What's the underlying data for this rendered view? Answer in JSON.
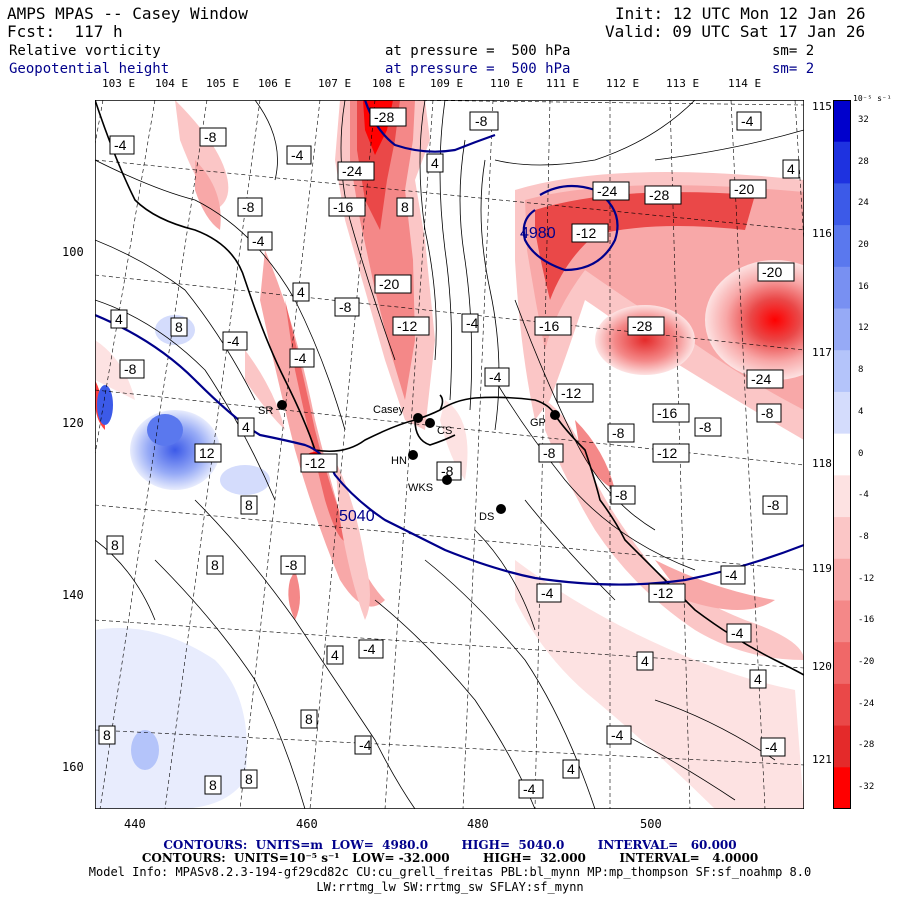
{
  "header": {
    "title": "AMPS MPAS -- Casey Window",
    "forecast": "Fcst:  117 h",
    "init": "Init: 12 UTC Mon 12 Jan 26",
    "valid": "Valid: 09 UTC Sat 17 Jan 26",
    "field1_name": "Relative vorticity",
    "field1_level": "at pressure =  500 hPa",
    "field1_smooth": "sm= 2",
    "field2_name": "Geopotential height",
    "field2_level": "at pressure =  500 hPa",
    "field2_smooth": "sm= 2"
  },
  "map": {
    "top_lon_labels": [
      "103 E",
      "104 E",
      "105 E",
      "106 E",
      "107 E",
      "108 E",
      "109 E",
      "110 E",
      "111 E",
      "112 E",
      "113 E",
      "114 E"
    ],
    "right_lon_labels": [
      "115 E",
      "116 E",
      "117 E",
      "118 E",
      "119 E",
      "120 E",
      "121 E"
    ],
    "x_ticks": [
      "440",
      "460",
      "480",
      "500"
    ],
    "y_ticks": [
      "100",
      "120",
      "140",
      "160"
    ],
    "stations": [
      {
        "id": "SR",
        "label": "SR"
      },
      {
        "id": "Casey",
        "label": "Casey"
      },
      {
        "id": "CS",
        "label": "CS"
      },
      {
        "id": "HN",
        "label": "HN"
      },
      {
        "id": "WKS",
        "label": "WKS"
      },
      {
        "id": "DS",
        "label": "DS"
      },
      {
        "id": "GP",
        "label": "GP"
      }
    ],
    "height_labels": [
      "4980",
      "5040"
    ],
    "vort_labels": [
      "-4",
      "-8",
      "-12",
      "-16",
      "-20",
      "-24",
      "-28",
      "4",
      "8",
      "12"
    ]
  },
  "colorbar": {
    "unit": "10⁻⁵ s⁻¹",
    "labels": [
      "32",
      "28",
      "24",
      "20",
      "16",
      "12",
      "8",
      "4",
      "0",
      "-4",
      "-8",
      "-12",
      "-16",
      "-20",
      "-24",
      "-28",
      "-32"
    ],
    "colors": [
      "#0000cc",
      "#1e32e0",
      "#3c5ae8",
      "#5a78ee",
      "#7890f2",
      "#96aaf6",
      "#b4c4fa",
      "#d4dcfc",
      "#ffffff",
      "#fde2e2",
      "#fbc6c6",
      "#f8a8a8",
      "#f48888",
      "#f06868",
      "#ea4848",
      "#e42a2a",
      "#ff0000"
    ]
  },
  "footer": {
    "line1": "CONTOURS:  UNITS=m  LOW=  4980.0        HIGH=  5040.0        INTERVAL=   60.000",
    "line2": "CONTOURS:  UNITS=10⁻⁵ s⁻¹   LOW= -32.000        HIGH=  32.000        INTERVAL=   4.0000",
    "line3": "Model Info: MPASv8.2.3-194-gf29cd82c CU:cu_grell_freitas PBL:bl_mynn MP:mp_thompson SF:sf_noahmp 8.0",
    "line4": "LW:rrtmg_lw SW:rrtmg_sw SFLAY:sf_mynn"
  }
}
